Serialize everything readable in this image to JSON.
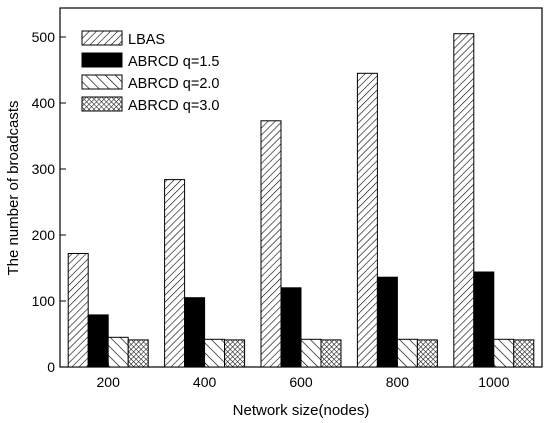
{
  "chart_data": {
    "type": "bar",
    "title": "",
    "xlabel": "Network size(nodes)",
    "ylabel": "The number of broadcasts",
    "categories": [
      "200",
      "400",
      "600",
      "800",
      "1000"
    ],
    "ylim": [
      0,
      520
    ],
    "yticks": [
      "0",
      "100",
      "200",
      "300",
      "400",
      "500"
    ],
    "legend_position": "top-left",
    "grid": false,
    "series": [
      {
        "name": "LBAS",
        "pattern": "diagonal-hatch-right",
        "values": [
          172,
          284,
          373,
          445,
          505
        ]
      },
      {
        "name": "ABRCD q=1.5",
        "pattern": "solid-black",
        "values": [
          79,
          105,
          120,
          136,
          144
        ]
      },
      {
        "name": "ABRCD q=2.0",
        "pattern": "diagonal-hatch-left",
        "values": [
          45,
          42,
          42,
          42,
          42
        ]
      },
      {
        "name": "ABRCD q=3.0",
        "pattern": "crosshatch",
        "values": [
          41,
          41,
          41,
          41,
          41
        ]
      }
    ]
  }
}
